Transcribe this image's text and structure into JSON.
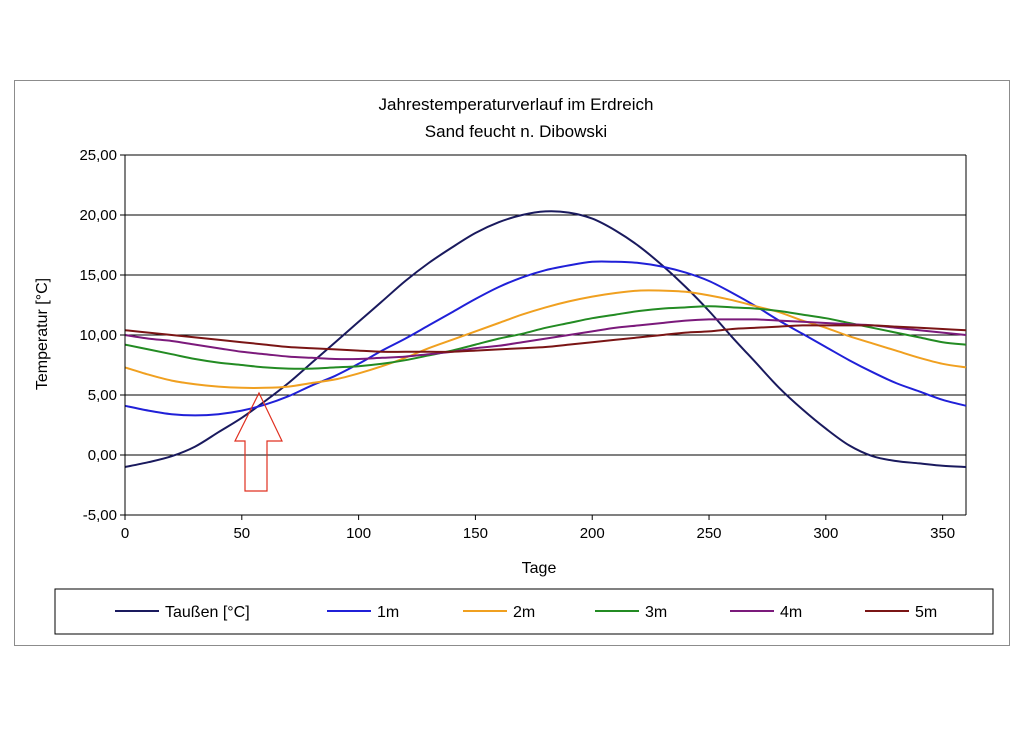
{
  "chart_data": {
    "type": "line",
    "title": [
      "Jahrestemperaturverlauf im Erdreich",
      "Sand feucht n. Dibowski"
    ],
    "xlabel": "Tage",
    "ylabel": "Temperatur [°C]",
    "xlim": [
      0,
      360
    ],
    "ylim": [
      -5,
      25
    ],
    "xticks": [
      0,
      50,
      100,
      150,
      200,
      250,
      300,
      350
    ],
    "xtick_labels": [
      "0",
      "50",
      "100",
      "150",
      "200",
      "250",
      "300",
      "350"
    ],
    "yticks": [
      -5,
      0,
      5,
      10,
      15,
      20,
      25
    ],
    "ytick_labels": [
      "-5,00",
      "0,00",
      "5,00",
      "10,00",
      "15,00",
      "20,00",
      "25,00"
    ],
    "grid": "horizontal",
    "legend_position": "bottom",
    "x": [
      0,
      10,
      20,
      30,
      40,
      50,
      60,
      70,
      80,
      90,
      100,
      110,
      120,
      130,
      140,
      150,
      160,
      170,
      180,
      190,
      200,
      210,
      220,
      230,
      240,
      250,
      260,
      270,
      280,
      290,
      300,
      310,
      320,
      330,
      340,
      350,
      360
    ],
    "series": [
      {
        "name": "Taußen [°C]",
        "color": "#1a1a5e",
        "values": [
          -1.0,
          -0.6,
          -0.1,
          0.7,
          1.9,
          3.1,
          4.5,
          6.0,
          7.7,
          9.4,
          11.1,
          12.8,
          14.5,
          16.0,
          17.3,
          18.5,
          19.4,
          20.0,
          20.3,
          20.2,
          19.7,
          18.7,
          17.4,
          15.8,
          14.0,
          12.0,
          9.8,
          7.7,
          5.6,
          3.8,
          2.2,
          0.8,
          -0.1,
          -0.5,
          -0.7,
          -0.9,
          -1.0
        ]
      },
      {
        "name": "1m",
        "color": "#2020d8",
        "values": [
          4.1,
          3.7,
          3.4,
          3.3,
          3.4,
          3.7,
          4.2,
          4.9,
          5.8,
          6.6,
          7.6,
          8.7,
          9.7,
          10.8,
          11.9,
          13.0,
          14.0,
          14.8,
          15.4,
          15.8,
          16.1,
          16.1,
          16.0,
          15.7,
          15.2,
          14.5,
          13.5,
          12.4,
          11.2,
          10.1,
          9.0,
          7.9,
          6.9,
          6.0,
          5.3,
          4.6,
          4.1
        ]
      },
      {
        "name": "2m",
        "color": "#f0a020",
        "values": [
          7.3,
          6.7,
          6.2,
          5.9,
          5.7,
          5.6,
          5.6,
          5.7,
          6.0,
          6.3,
          6.8,
          7.4,
          8.1,
          8.9,
          9.6,
          10.3,
          11.0,
          11.7,
          12.3,
          12.8,
          13.2,
          13.5,
          13.7,
          13.7,
          13.6,
          13.3,
          12.9,
          12.4,
          11.9,
          11.2,
          10.6,
          9.9,
          9.3,
          8.7,
          8.1,
          7.6,
          7.3
        ]
      },
      {
        "name": "3m",
        "color": "#238b23",
        "values": [
          9.2,
          8.8,
          8.4,
          8.0,
          7.7,
          7.5,
          7.3,
          7.2,
          7.2,
          7.3,
          7.4,
          7.6,
          7.9,
          8.3,
          8.7,
          9.2,
          9.7,
          10.1,
          10.6,
          11.0,
          11.4,
          11.7,
          12.0,
          12.2,
          12.3,
          12.4,
          12.3,
          12.2,
          12.0,
          11.7,
          11.4,
          11.0,
          10.6,
          10.2,
          9.8,
          9.4,
          9.2
        ]
      },
      {
        "name": "4m",
        "color": "#7b1a7b",
        "values": [
          10.0,
          9.7,
          9.5,
          9.2,
          8.9,
          8.6,
          8.4,
          8.2,
          8.1,
          8.0,
          8.0,
          8.1,
          8.2,
          8.4,
          8.6,
          8.9,
          9.1,
          9.4,
          9.7,
          10.0,
          10.3,
          10.6,
          10.8,
          11.0,
          11.2,
          11.3,
          11.3,
          11.3,
          11.2,
          11.1,
          11.0,
          10.9,
          10.8,
          10.6,
          10.4,
          10.2,
          10.0
        ]
      },
      {
        "name": "5m",
        "color": "#7a1515",
        "values": [
          10.4,
          10.2,
          10.0,
          9.8,
          9.6,
          9.4,
          9.2,
          9.0,
          8.9,
          8.8,
          8.7,
          8.6,
          8.6,
          8.6,
          8.6,
          8.7,
          8.8,
          8.9,
          9.0,
          9.2,
          9.4,
          9.6,
          9.8,
          10.0,
          10.2,
          10.3,
          10.5,
          10.6,
          10.7,
          10.8,
          10.8,
          10.8,
          10.8,
          10.7,
          10.6,
          10.5,
          10.4
        ]
      }
    ]
  }
}
